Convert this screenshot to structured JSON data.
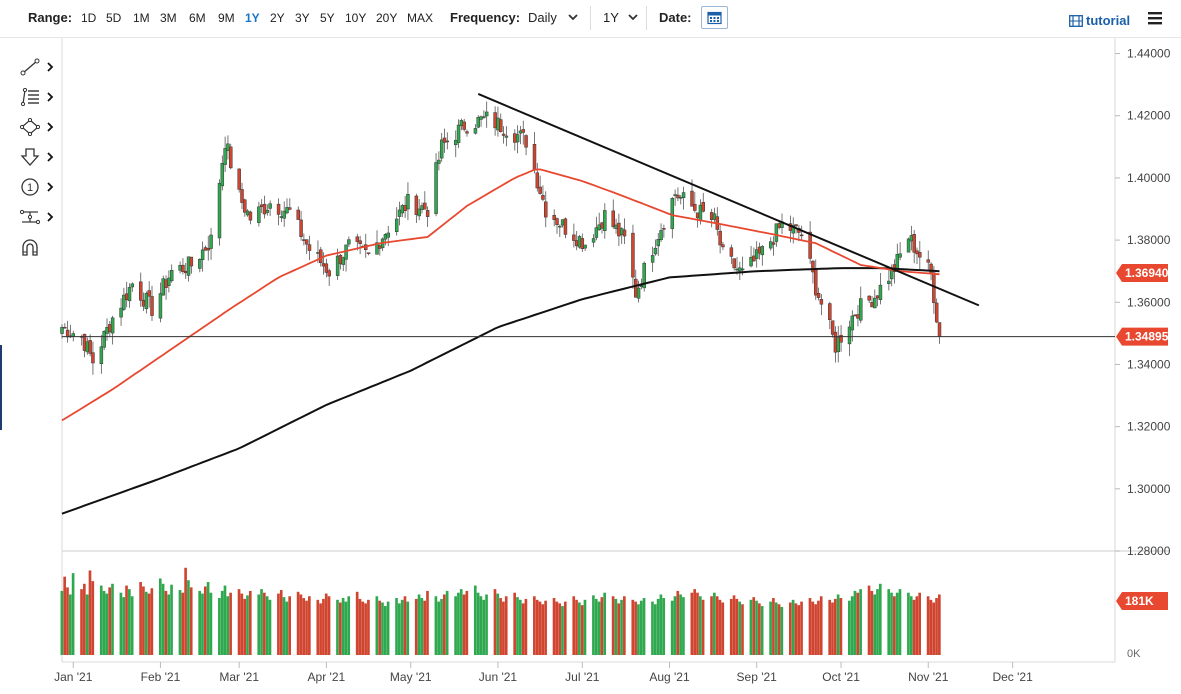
{
  "toolbar": {
    "range_label": "Range:",
    "ranges": [
      "1D",
      "5D",
      "1M",
      "3M",
      "6M",
      "9M",
      "1Y",
      "2Y",
      "3Y",
      "5Y",
      "10Y",
      "20Y",
      "MAX"
    ],
    "active_range": "1Y",
    "frequency_label": "Frequency:",
    "frequency_value": "Daily",
    "period_value": "1Y",
    "date_label": "Date:",
    "tutorial_label": "tutorial"
  },
  "tools": [
    "line-tool-icon",
    "fibonacci-tool-icon",
    "shape-tool-icon",
    "arrow-tool-icon",
    "annotation-tool-icon",
    "measure-tool-icon",
    "magnet-icon"
  ],
  "colors": {
    "up": "#2fa84f",
    "down": "#d0452f",
    "ma_short": "#e8482f",
    "ma_long": "#111111",
    "price_tag": "#e8482f"
  },
  "chart_data": {
    "type": "candlestick",
    "instrument_note": "",
    "y_axis": {
      "ylim": [
        1.28,
        1.445
      ],
      "ticks": [
        "1.44000",
        "1.42000",
        "1.40000",
        "1.38000",
        "1.36000",
        "1.34000",
        "1.32000",
        "1.30000",
        "1.28000"
      ]
    },
    "x_axis": {
      "labels": [
        "Jan '21",
        "Feb '21",
        "Mar '21",
        "Apr '21",
        "May '21",
        "Jun '21",
        "Jul '21",
        "Aug '21",
        "Sep '21",
        "Oct '21",
        "Nov '21",
        "Dec '21"
      ],
      "range": [
        "2020-12-28",
        "2021-12-31"
      ]
    },
    "last_price": "1.34895",
    "ma_short_value": "1.36940",
    "last_volume": "181K",
    "volume_zero_label": "0K",
    "close_path": [
      [
        "2020-12-28",
        1.352
      ],
      [
        "2021-01-04",
        1.349
      ],
      [
        "2021-01-08",
        1.341
      ],
      [
        "2021-01-15",
        1.355
      ],
      [
        "2021-01-22",
        1.366
      ],
      [
        "2021-01-29",
        1.358
      ],
      [
        "2021-02-05",
        1.37
      ],
      [
        "2021-02-12",
        1.372
      ],
      [
        "2021-02-19",
        1.38
      ],
      [
        "2021-02-24",
        1.412
      ],
      [
        "2021-03-01",
        1.394
      ],
      [
        "2021-03-05",
        1.387
      ],
      [
        "2021-03-12",
        1.392
      ],
      [
        "2021-03-19",
        1.389
      ],
      [
        "2021-03-26",
        1.377
      ],
      [
        "2021-04-02",
        1.37
      ],
      [
        "2021-04-09",
        1.378
      ],
      [
        "2021-04-16",
        1.375
      ],
      [
        "2021-04-23",
        1.384
      ],
      [
        "2021-04-30",
        1.392
      ],
      [
        "2021-05-07",
        1.39
      ],
      [
        "2021-05-12",
        1.41
      ],
      [
        "2021-05-20",
        1.417
      ],
      [
        "2021-05-28",
        1.419
      ],
      [
        "2021-06-04",
        1.416
      ],
      [
        "2021-06-11",
        1.412
      ],
      [
        "2021-06-18",
        1.39
      ],
      [
        "2021-06-25",
        1.384
      ],
      [
        "2021-07-02",
        1.379
      ],
      [
        "2021-07-09",
        1.388
      ],
      [
        "2021-07-16",
        1.38
      ],
      [
        "2021-07-20",
        1.363
      ],
      [
        "2021-07-27",
        1.38
      ],
      [
        "2021-08-03",
        1.395
      ],
      [
        "2021-08-10",
        1.39
      ],
      [
        "2021-08-17",
        1.386
      ],
      [
        "2021-08-20",
        1.375
      ],
      [
        "2021-08-27",
        1.369
      ],
      [
        "2021-09-03",
        1.376
      ],
      [
        "2021-09-10",
        1.385
      ],
      [
        "2021-09-17",
        1.382
      ],
      [
        "2021-09-22",
        1.365
      ],
      [
        "2021-09-29",
        1.346
      ],
      [
        "2021-10-06",
        1.357
      ],
      [
        "2021-10-13",
        1.362
      ],
      [
        "2021-10-20",
        1.371
      ],
      [
        "2021-10-25",
        1.381
      ],
      [
        "2021-10-29",
        1.375
      ],
      [
        "2021-11-02",
        1.369
      ],
      [
        "2021-11-05",
        1.349
      ]
    ],
    "ma_short_path": [
      [
        "2020-12-28",
        1.322
      ],
      [
        "2021-01-15",
        1.332
      ],
      [
        "2021-02-05",
        1.345
      ],
      [
        "2021-02-26",
        1.358
      ],
      [
        "2021-03-15",
        1.368
      ],
      [
        "2021-04-01",
        1.375
      ],
      [
        "2021-04-20",
        1.379
      ],
      [
        "2021-05-07",
        1.381
      ],
      [
        "2021-05-21",
        1.391
      ],
      [
        "2021-06-07",
        1.4
      ],
      [
        "2021-06-15",
        1.403
      ],
      [
        "2021-07-01",
        1.399
      ],
      [
        "2021-07-16",
        1.394
      ],
      [
        "2021-08-02",
        1.388
      ],
      [
        "2021-08-20",
        1.385
      ],
      [
        "2021-09-06",
        1.382
      ],
      [
        "2021-09-22",
        1.379
      ],
      [
        "2021-10-08",
        1.372
      ],
      [
        "2021-10-22",
        1.37
      ],
      [
        "2021-11-05",
        1.369
      ]
    ],
    "ma_long_path": [
      [
        "2020-12-28",
        1.292
      ],
      [
        "2021-01-31",
        1.303
      ],
      [
        "2021-03-01",
        1.313
      ],
      [
        "2021-04-01",
        1.327
      ],
      [
        "2021-05-01",
        1.338
      ],
      [
        "2021-06-01",
        1.352
      ],
      [
        "2021-07-01",
        1.361
      ],
      [
        "2021-08-01",
        1.368
      ],
      [
        "2021-09-01",
        1.37
      ],
      [
        "2021-10-01",
        1.371
      ],
      [
        "2021-10-15",
        1.371
      ],
      [
        "2021-11-05",
        1.37
      ]
    ],
    "trendline": [
      [
        "2021-05-25",
        1.427
      ],
      [
        "2021-11-19",
        1.359
      ]
    ],
    "volume_series": [
      0.72,
      0.88,
      0.76,
      0.68,
      0.92,
      0.74,
      0.8,
      0.68,
      0.95,
      0.83,
      0.78,
      0.72,
      0.69,
      0.76,
      0.8,
      0.7,
      0.65,
      0.78,
      0.74,
      0.66,
      0.82,
      0.77,
      0.71,
      0.69,
      0.75,
      0.86,
      0.8,
      0.72,
      0.68,
      0.79,
      0.73,
      0.7,
      0.98,
      0.84,
      0.76,
      0.72,
      0.69,
      0.77,
      0.82,
      0.7,
      0.64,
      0.72,
      0.78,
      0.66,
      0.7,
      0.74,
      0.69,
      0.63,
      0.67,
      0.72,
      0.68,
      0.74,
      0.7,
      0.66,
      0.62,
      0.69,
      0.73,
      0.65,
      0.6,
      0.66,
      0.71,
      0.68,
      0.64,
      0.61,
      0.66,
      0.62,
      0.58,
      0.63,
      0.69,
      0.66,
      0.62,
      0.59,
      0.64,
      0.6,
      0.66,
      0.71,
      0.63,
      0.6,
      0.58,
      0.62,
      0.66,
      0.61,
      0.59,
      0.55,
      0.6,
      0.64,
      0.58,
      0.62,
      0.66,
      0.6,
      0.63,
      0.68,
      0.64,
      0.61,
      0.72,
      0.66,
      0.6,
      0.63,
      0.68,
      0.72,
      0.66,
      0.7,
      0.74,
      0.68,
      0.72,
      0.78,
      0.7,
      0.66,
      0.62,
      0.68,
      0.74,
      0.69,
      0.64,
      0.6,
      0.66,
      0.7,
      0.65,
      0.62,
      0.58,
      0.63,
      0.66,
      0.62,
      0.6,
      0.57,
      0.61,
      0.64,
      0.6,
      0.58,
      0.55,
      0.6,
      0.66,
      0.62,
      0.59,
      0.56,
      0.62,
      0.67,
      0.63,
      0.6,
      0.65,
      0.7,
      0.66,
      0.63,
      0.58,
      0.62,
      0.66,
      0.62,
      0.6,
      0.57,
      0.61,
      0.64,
      0.6,
      0.57,
      0.63,
      0.68,
      0.64,
      0.61,
      0.66,
      0.72,
      0.68,
      0.65,
      0.7,
      0.74,
      0.7,
      0.66,
      0.62,
      0.66,
      0.7,
      0.66,
      0.62,
      0.59,
      0.63,
      0.67,
      0.63,
      0.6,
      0.57,
      0.62,
      0.65,
      0.61,
      0.58,
      0.55,
      0.6,
      0.64,
      0.59,
      0.57,
      0.54,
      0.59,
      0.62,
      0.58,
      0.56,
      0.6,
      0.64,
      0.6,
      0.57,
      0.61,
      0.66,
      0.62,
      0.59,
      0.63,
      0.68,
      0.64,
      0.61,
      0.66,
      0.72,
      0.7,
      0.74,
      0.78,
      0.72,
      0.68,
      0.74,
      0.8,
      0.74,
      0.7,
      0.66,
      0.7,
      0.74,
      0.7,
      0.66,
      0.62,
      0.66,
      0.7,
      0.66,
      0.62,
      0.59,
      0.64,
      0.68,
      0.64,
      0.61,
      0.66,
      0.7,
      0.74,
      0.7,
      0.72,
      0.76,
      0.72
    ],
    "volume_ylim": [
      0,
      1
    ]
  }
}
